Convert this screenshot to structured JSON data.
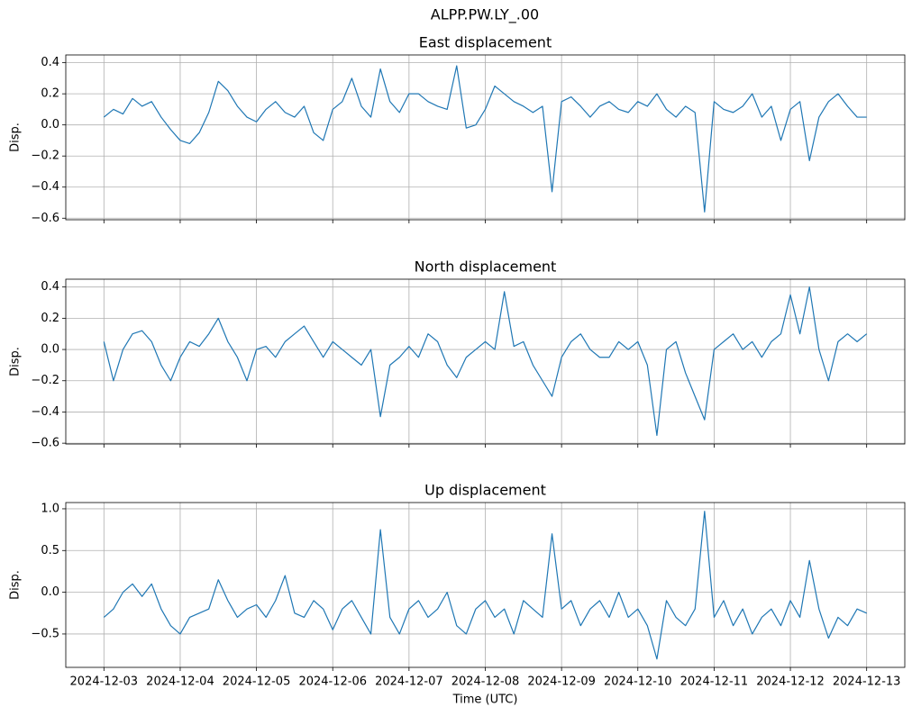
{
  "title": "ALPP.PW.LY_.00",
  "chart_data": [
    {
      "type": "line",
      "title": "East displacement",
      "ylabel": "Disp.",
      "x": [
        0,
        0.125,
        0.25,
        0.375,
        0.5,
        0.625,
        0.75,
        0.875,
        1,
        1.125,
        1.25,
        1.375,
        1.5,
        1.625,
        1.75,
        1.875,
        2,
        2.125,
        2.25,
        2.375,
        2.5,
        2.625,
        2.75,
        2.875,
        3,
        3.125,
        3.25,
        3.375,
        3.5,
        3.625,
        3.75,
        3.875,
        4,
        4.125,
        4.25,
        4.375,
        4.5,
        4.625,
        4.75,
        4.875,
        5,
        5.125,
        5.25,
        5.375,
        5.5,
        5.625,
        5.75,
        5.875,
        6,
        6.125,
        6.25,
        6.375,
        6.5,
        6.625,
        6.75,
        6.875,
        7,
        7.125,
        7.25,
        7.375,
        7.5,
        7.625,
        7.75,
        7.875,
        8,
        8.125,
        8.25,
        8.375,
        8.5,
        8.625,
        8.75,
        8.875,
        9,
        9.125,
        9.25,
        9.375,
        9.5,
        9.625,
        9.75,
        9.875,
        10
      ],
      "series": [
        {
          "color": "#1f77b4",
          "values": [
            0.05,
            0.1,
            0.07,
            0.17,
            0.12,
            0.15,
            0.05,
            -0.03,
            -0.1,
            -0.12,
            -0.05,
            0.08,
            0.28,
            0.22,
            0.12,
            0.05,
            0.02,
            0.1,
            0.15,
            0.08,
            0.05,
            0.12,
            -0.05,
            -0.1,
            0.1,
            0.15,
            0.3,
            0.12,
            0.05,
            0.36,
            0.15,
            0.08,
            0.2,
            0.2,
            0.15,
            0.12,
            0.1,
            0.38,
            -0.02,
            0.0,
            0.1,
            0.25,
            0.2,
            0.15,
            0.12,
            0.08,
            0.12,
            -0.43,
            0.15,
            0.18,
            0.12,
            0.05,
            0.12,
            0.15,
            0.1,
            0.08,
            0.15,
            0.12,
            0.2,
            0.1,
            0.05,
            0.12,
            0.08,
            -0.56,
            0.15,
            0.1,
            0.08,
            0.12,
            0.2,
            0.05,
            0.12,
            -0.1,
            0.1,
            0.15,
            -0.23,
            0.05,
            0.15,
            0.2,
            0.12,
            0.05,
            0.05
          ]
        }
      ],
      "xlim": [
        -0.5,
        10.5
      ],
      "xticks": [
        0,
        1,
        2,
        3,
        4,
        5,
        6,
        7,
        8,
        9,
        10
      ],
      "ylim": [
        -0.61,
        0.45
      ],
      "yticks": [
        {
          "value": -0.6,
          "label": "−0.6"
        },
        {
          "value": -0.4,
          "label": "−0.4"
        },
        {
          "value": -0.2,
          "label": "−0.2"
        },
        {
          "value": 0,
          "label": "0.0"
        },
        0.2,
        0.4
      ],
      "grid": true
    },
    {
      "type": "line",
      "title": "North displacement",
      "ylabel": "Disp.",
      "x": [
        0,
        0.125,
        0.25,
        0.375,
        0.5,
        0.625,
        0.75,
        0.875,
        1,
        1.125,
        1.25,
        1.375,
        1.5,
        1.625,
        1.75,
        1.875,
        2,
        2.125,
        2.25,
        2.375,
        2.5,
        2.625,
        2.75,
        2.875,
        3,
        3.125,
        3.25,
        3.375,
        3.5,
        3.625,
        3.75,
        3.875,
        4,
        4.125,
        4.25,
        4.375,
        4.5,
        4.625,
        4.75,
        4.875,
        5,
        5.125,
        5.25,
        5.375,
        5.5,
        5.625,
        5.75,
        5.875,
        6,
        6.125,
        6.25,
        6.375,
        6.5,
        6.625,
        6.75,
        6.875,
        7,
        7.125,
        7.25,
        7.375,
        7.5,
        7.625,
        7.75,
        7.875,
        8,
        8.125,
        8.25,
        8.375,
        8.5,
        8.625,
        8.75,
        8.875,
        9,
        9.125,
        9.25,
        9.375,
        9.5,
        9.625,
        9.75,
        9.875,
        10
      ],
      "series": [
        {
          "color": "#1f77b4",
          "values": [
            0.05,
            -0.2,
            0.0,
            0.1,
            0.12,
            0.05,
            -0.1,
            -0.2,
            -0.05,
            0.05,
            0.02,
            0.1,
            0.2,
            0.05,
            -0.05,
            -0.2,
            0.0,
            0.02,
            -0.05,
            0.05,
            0.1,
            0.15,
            0.05,
            -0.05,
            0.05,
            0.0,
            -0.05,
            -0.1,
            0.0,
            -0.43,
            -0.1,
            -0.05,
            0.02,
            -0.05,
            0.1,
            0.05,
            -0.1,
            -0.18,
            -0.05,
            0.0,
            0.05,
            0.0,
            0.37,
            0.02,
            0.05,
            -0.1,
            -0.2,
            -0.3,
            -0.05,
            0.05,
            0.1,
            0.0,
            -0.05,
            -0.05,
            0.05,
            0.0,
            0.05,
            -0.1,
            -0.55,
            0.0,
            0.05,
            -0.15,
            -0.3,
            -0.45,
            0.0,
            0.05,
            0.1,
            0.0,
            0.05,
            -0.05,
            0.05,
            0.1,
            0.35,
            0.1,
            0.4,
            0.0,
            -0.2,
            0.05,
            0.1,
            0.05,
            0.1
          ]
        }
      ],
      "xlim": [
        -0.5,
        10.5
      ],
      "xticks": [
        0,
        1,
        2,
        3,
        4,
        5,
        6,
        7,
        8,
        9,
        10
      ],
      "ylim": [
        -0.605,
        0.45
      ],
      "yticks": [
        {
          "value": -0.6,
          "label": "−0.6"
        },
        {
          "value": -0.4,
          "label": "−0.4"
        },
        {
          "value": -0.2,
          "label": "−0.2"
        },
        {
          "value": 0,
          "label": "0.0"
        },
        0.2,
        0.4
      ],
      "grid": true
    },
    {
      "type": "line",
      "title": "Up displacement",
      "ylabel": "Disp.",
      "xlabel": "Time (UTC)",
      "x": [
        0,
        0.125,
        0.25,
        0.375,
        0.5,
        0.625,
        0.75,
        0.875,
        1,
        1.125,
        1.25,
        1.375,
        1.5,
        1.625,
        1.75,
        1.875,
        2,
        2.125,
        2.25,
        2.375,
        2.5,
        2.625,
        2.75,
        2.875,
        3,
        3.125,
        3.25,
        3.375,
        3.5,
        3.625,
        3.75,
        3.875,
        4,
        4.125,
        4.25,
        4.375,
        4.5,
        4.625,
        4.75,
        4.875,
        5,
        5.125,
        5.25,
        5.375,
        5.5,
        5.625,
        5.75,
        5.875,
        6,
        6.125,
        6.25,
        6.375,
        6.5,
        6.625,
        6.75,
        6.875,
        7,
        7.125,
        7.25,
        7.375,
        7.5,
        7.625,
        7.75,
        7.875,
        8,
        8.125,
        8.25,
        8.375,
        8.5,
        8.625,
        8.75,
        8.875,
        9,
        9.125,
        9.25,
        9.375,
        9.5,
        9.625,
        9.75,
        9.875,
        10
      ],
      "series": [
        {
          "color": "#1f77b4",
          "values": [
            -0.3,
            -0.2,
            0.0,
            0.1,
            -0.05,
            0.1,
            -0.2,
            -0.4,
            -0.5,
            -0.3,
            -0.25,
            -0.2,
            0.15,
            -0.1,
            -0.3,
            -0.2,
            -0.15,
            -0.3,
            -0.1,
            0.2,
            -0.25,
            -0.3,
            -0.1,
            -0.2,
            -0.45,
            -0.2,
            -0.1,
            -0.3,
            -0.5,
            0.75,
            -0.3,
            -0.5,
            -0.2,
            -0.1,
            -0.3,
            -0.2,
            0.0,
            -0.4,
            -0.5,
            -0.2,
            -0.1,
            -0.3,
            -0.2,
            -0.5,
            -0.1,
            -0.2,
            -0.3,
            0.7,
            -0.2,
            -0.1,
            -0.4,
            -0.2,
            -0.1,
            -0.3,
            0.0,
            -0.3,
            -0.2,
            -0.4,
            -0.8,
            -0.1,
            -0.3,
            -0.4,
            -0.2,
            0.97,
            -0.3,
            -0.1,
            -0.4,
            -0.2,
            -0.5,
            -0.3,
            -0.2,
            -0.4,
            -0.1,
            -0.3,
            0.38,
            -0.2,
            -0.55,
            -0.3,
            -0.4,
            -0.2,
            -0.25
          ]
        }
      ],
      "xlim": [
        -0.5,
        10.5
      ],
      "xticks": [
        {
          "value": 0,
          "label": "2024-12-03"
        },
        {
          "value": 1,
          "label": "2024-12-04"
        },
        {
          "value": 2,
          "label": "2024-12-05"
        },
        {
          "value": 3,
          "label": "2024-12-06"
        },
        {
          "value": 4,
          "label": "2024-12-07"
        },
        {
          "value": 5,
          "label": "2024-12-08"
        },
        {
          "value": 6,
          "label": "2024-12-09"
        },
        {
          "value": 7,
          "label": "2024-12-10"
        },
        {
          "value": 8,
          "label": "2024-12-11"
        },
        {
          "value": 9,
          "label": "2024-12-12"
        },
        {
          "value": 10,
          "label": "2024-12-13"
        }
      ],
      "ylim": [
        -0.9,
        1.075
      ],
      "yticks": [
        {
          "value": -0.5,
          "label": "−0.5"
        },
        {
          "value": 0,
          "label": "0.0"
        },
        {
          "value": 0.5,
          "label": "0.5"
        },
        {
          "value": 1,
          "label": "1.0"
        }
      ],
      "grid": true
    }
  ]
}
